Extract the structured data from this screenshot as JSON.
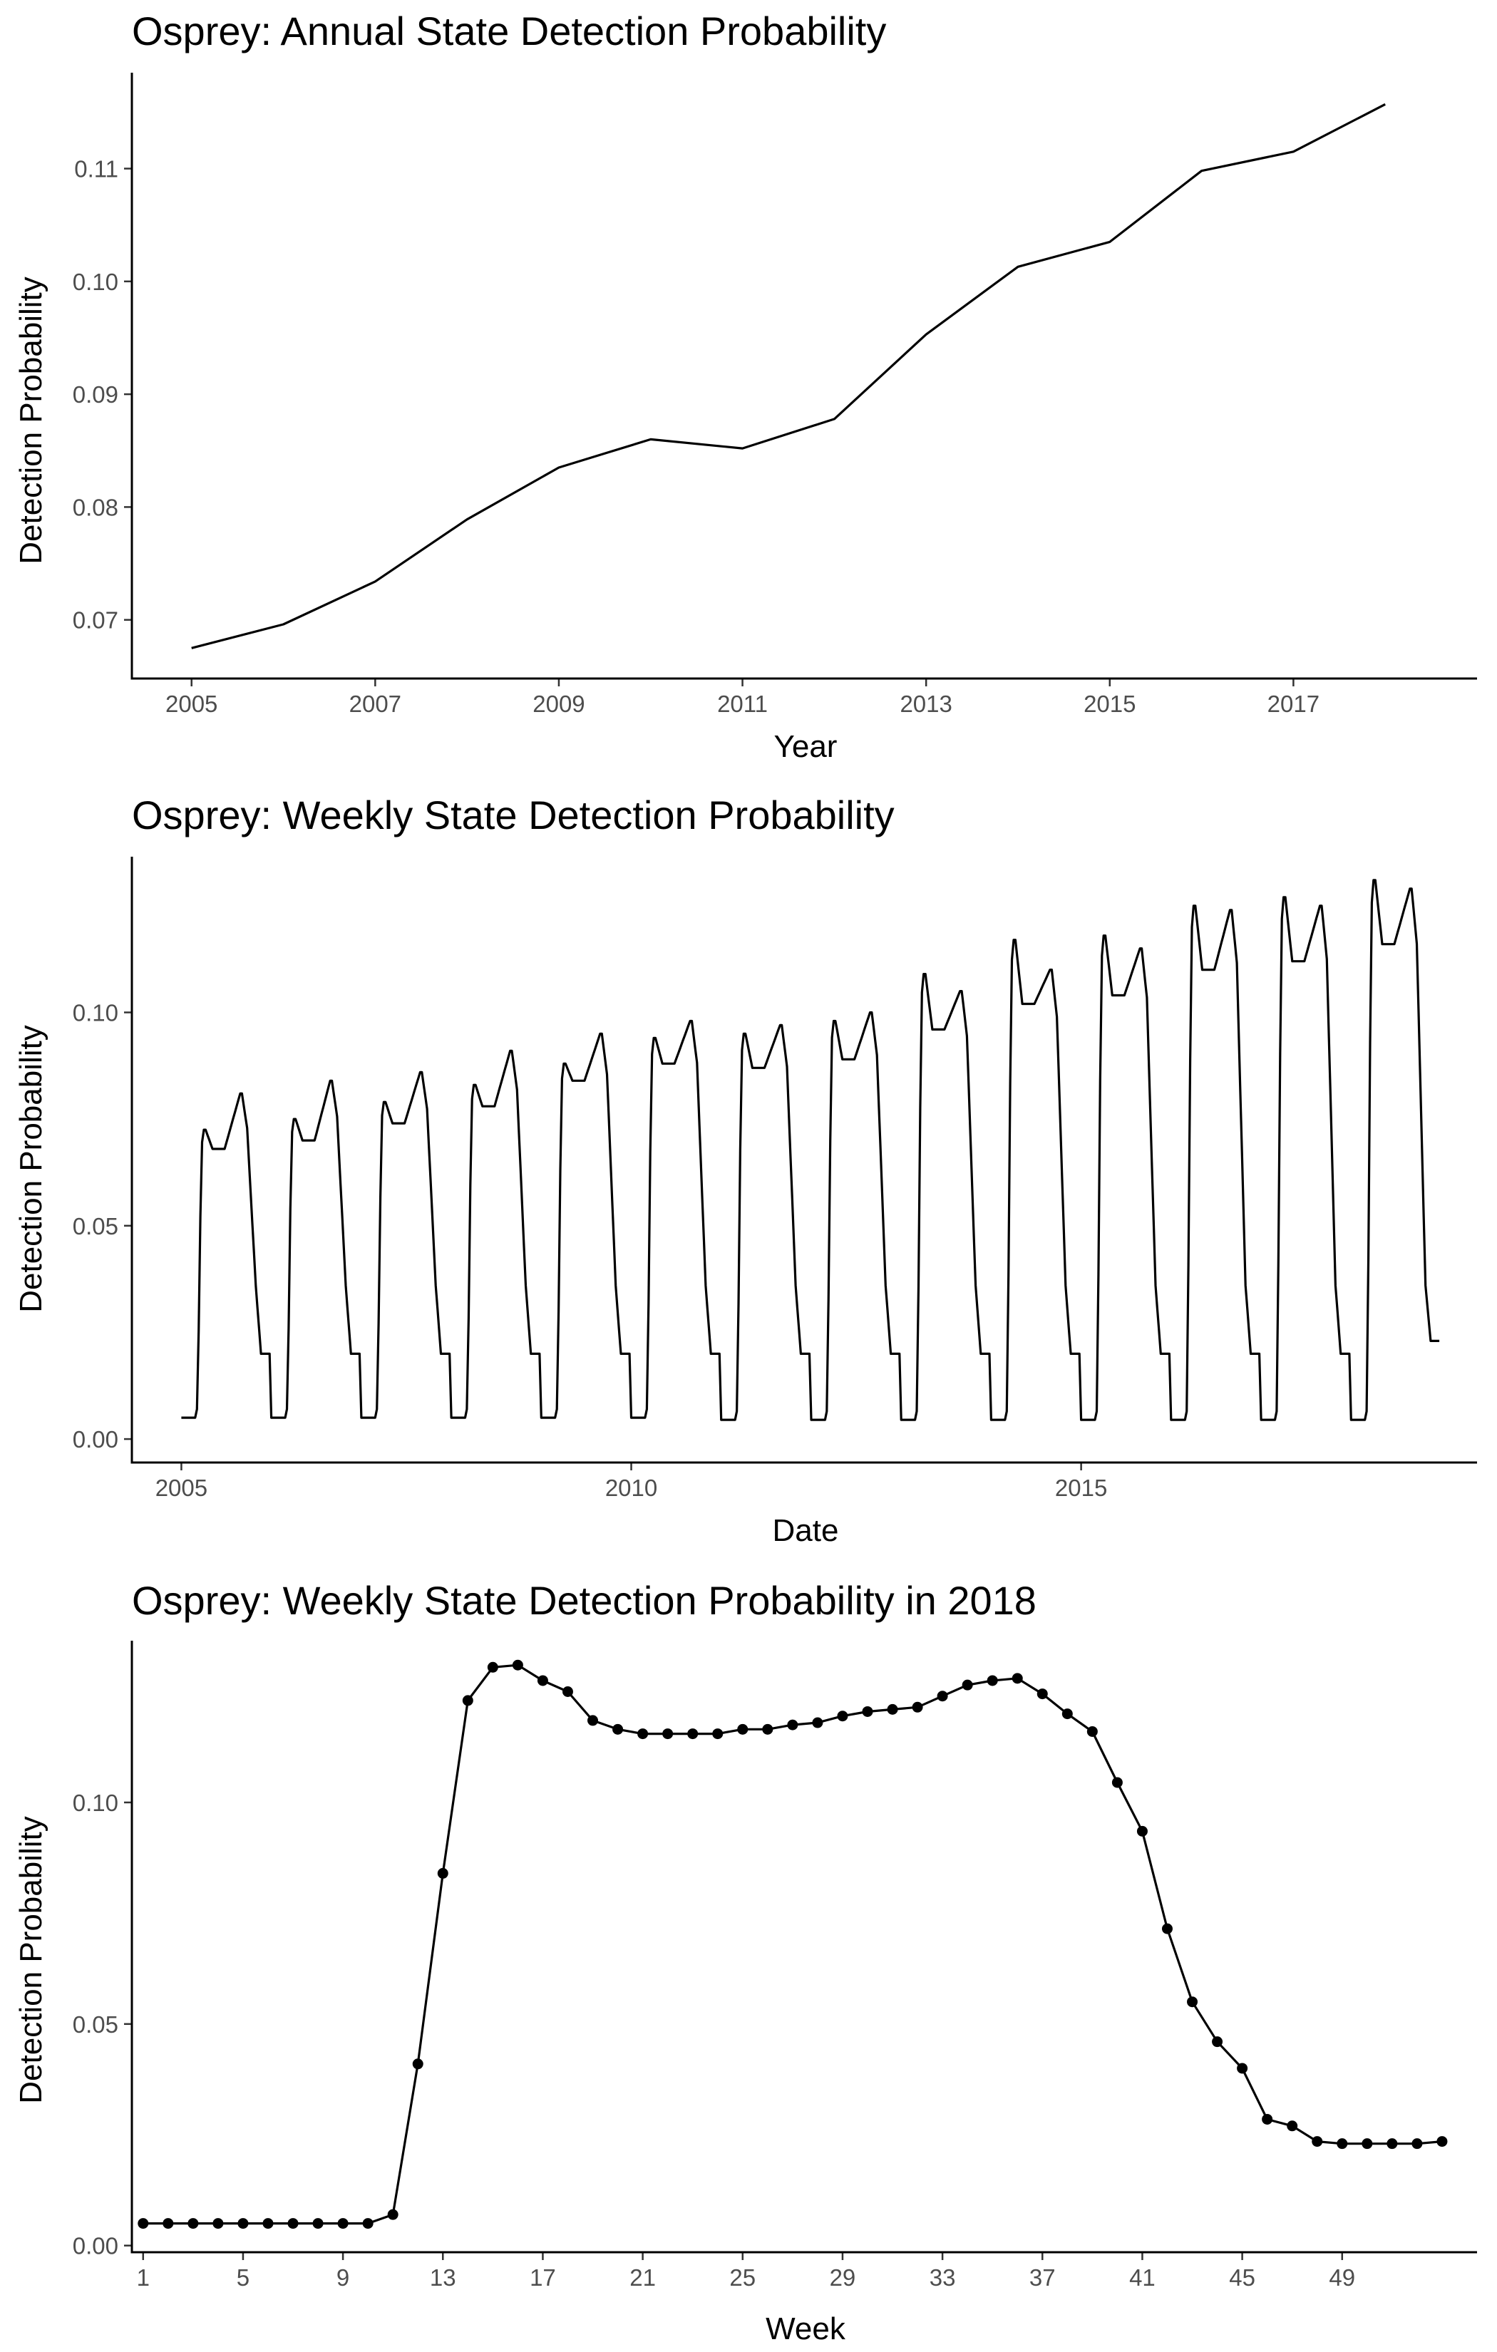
{
  "chart_data": [
    {
      "type": "line",
      "title": "Osprey: Annual State Detection Probability",
      "xlabel": "Year",
      "ylabel": "Detection Probability",
      "xlim": [
        2004.35,
        2019.0
      ],
      "ylim": [
        0.0648,
        0.1185
      ],
      "x_ticks": [
        2005,
        2007,
        2009,
        2011,
        2013,
        2015,
        2017
      ],
      "x_tick_labels": [
        "2005",
        "2007",
        "2009",
        "2011",
        "2013",
        "2015",
        "2017"
      ],
      "y_ticks": [
        0.07,
        0.08,
        0.09,
        0.1,
        0.11
      ],
      "y_tick_labels": [
        "0.07",
        "0.08",
        "0.09",
        "0.10",
        "0.11"
      ],
      "points": false,
      "grid": false,
      "series": [
        {
          "x": [
            2005,
            2006,
            2007,
            2008,
            2009,
            2010,
            2011,
            2012,
            2013,
            2014,
            2015,
            2016,
            2017,
            2018
          ],
          "values": [
            0.0675,
            0.0696,
            0.0734,
            0.0789,
            0.0835,
            0.086,
            0.0852,
            0.0878,
            0.0953,
            0.1013,
            0.1035,
            0.1098,
            0.1115,
            0.1157
          ]
        }
      ]
    },
    {
      "type": "line",
      "title": "Osprey: Weekly State Detection Probability",
      "xlabel": "Date",
      "ylabel": "Detection Probability",
      "xlim": [
        2004.45,
        2019.4
      ],
      "ylim": [
        -0.0055,
        0.1365
      ],
      "x_ticks": [
        2005,
        2010,
        2015
      ],
      "x_tick_labels": [
        "2005",
        "2010",
        "2015"
      ],
      "y_ticks": [
        0.0,
        0.05,
        0.1
      ],
      "y_tick_labels": [
        "0.00",
        "0.05",
        "0.10"
      ],
      "points": false,
      "grid": false,
      "weekly_profiles": {
        "years": [
          2005,
          2006,
          2007,
          2008,
          2009,
          2010,
          2011,
          2012,
          2013,
          2014,
          2015,
          2016,
          2017,
          2018
        ],
        "baseline": [
          0.005,
          0.005,
          0.005,
          0.005,
          0.005,
          0.005,
          0.0045,
          0.0045,
          0.0045,
          0.0045,
          0.0045,
          0.0045,
          0.0045,
          0.0045
        ],
        "spring_peak": [
          0.0725,
          0.075,
          0.079,
          0.083,
          0.088,
          0.094,
          0.095,
          0.098,
          0.109,
          0.117,
          0.118,
          0.125,
          0.127,
          0.131
        ],
        "summer_plateau": [
          0.068,
          0.07,
          0.074,
          0.078,
          0.084,
          0.088,
          0.087,
          0.089,
          0.096,
          0.102,
          0.104,
          0.11,
          0.112,
          0.116
        ],
        "fall_peak": [
          0.081,
          0.084,
          0.086,
          0.091,
          0.095,
          0.098,
          0.097,
          0.1,
          0.105,
          0.11,
          0.115,
          0.124,
          0.125,
          0.129
        ],
        "winter_tail": [
          0.02,
          0.02,
          0.02,
          0.02,
          0.02,
          0.02,
          0.02,
          0.02,
          0.02,
          0.02,
          0.02,
          0.02,
          0.02,
          0.023
        ]
      }
    },
    {
      "type": "line",
      "title": "Osprey: Weekly State Detection Probability in 2018",
      "xlabel": "Week",
      "ylabel": "Detection Probability",
      "xlim": [
        0.55,
        54.4
      ],
      "ylim": [
        -0.0015,
        0.1365
      ],
      "x_ticks": [
        1,
        5,
        9,
        13,
        17,
        21,
        25,
        29,
        33,
        37,
        41,
        45,
        49
      ],
      "x_tick_labels": [
        "1",
        "5",
        "9",
        "13",
        "17",
        "21",
        "25",
        "29",
        "33",
        "37",
        "41",
        "45",
        "49"
      ],
      "y_ticks": [
        0.0,
        0.05,
        0.1
      ],
      "y_tick_labels": [
        "0.00",
        "0.05",
        "0.10"
      ],
      "points": true,
      "grid": false,
      "series": [
        {
          "x": [
            1,
            2,
            3,
            4,
            5,
            6,
            7,
            8,
            9,
            10,
            11,
            12,
            13,
            14,
            15,
            16,
            17,
            18,
            19,
            20,
            21,
            22,
            23,
            24,
            25,
            26,
            27,
            28,
            29,
            30,
            31,
            32,
            33,
            34,
            35,
            36,
            37,
            38,
            39,
            40,
            41,
            42,
            43,
            44,
            45,
            46,
            47,
            48,
            49,
            50,
            51,
            52,
            53
          ],
          "values": [
            0.005,
            0.005,
            0.005,
            0.005,
            0.005,
            0.005,
            0.005,
            0.005,
            0.005,
            0.005,
            0.007,
            0.041,
            0.084,
            0.123,
            0.1305,
            0.131,
            0.1275,
            0.125,
            0.1185,
            0.1165,
            0.1155,
            0.1155,
            0.1155,
            0.1155,
            0.1165,
            0.1165,
            0.1175,
            0.118,
            0.1195,
            0.1205,
            0.121,
            0.1215,
            0.124,
            0.1265,
            0.1275,
            0.128,
            0.1245,
            0.12,
            0.116,
            0.1045,
            0.0935,
            0.0715,
            0.055,
            0.046,
            0.04,
            0.0285,
            0.027,
            0.0235,
            0.023,
            0.023,
            0.023,
            0.023,
            0.0235
          ]
        }
      ]
    }
  ]
}
